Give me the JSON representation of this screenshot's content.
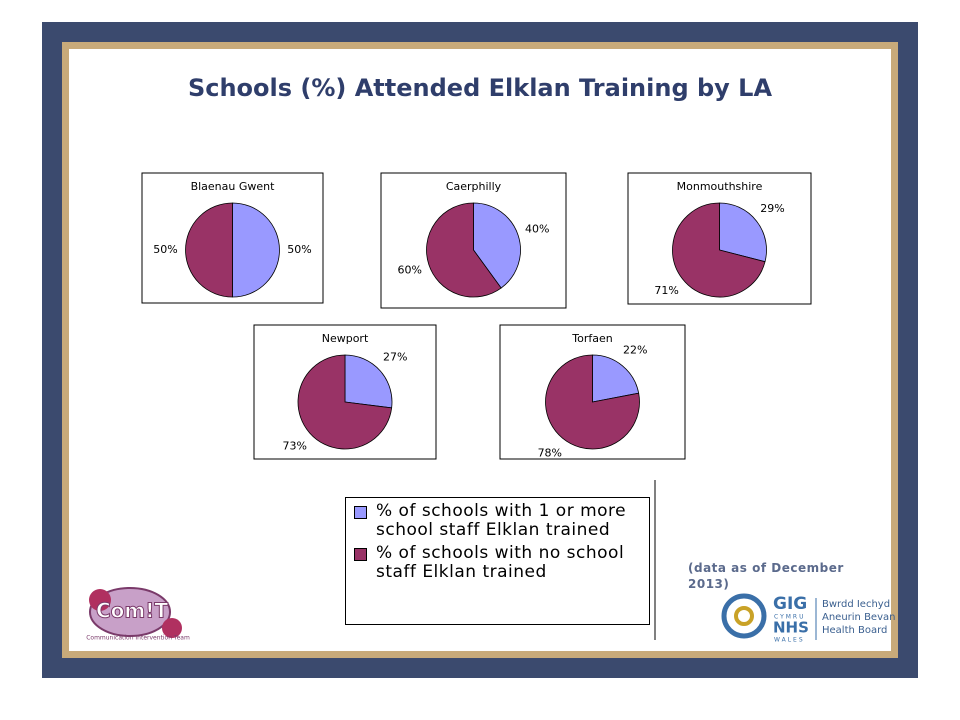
{
  "title": "Schools (%) Attended Elklan Training by LA",
  "legend": {
    "entries": [
      {
        "name": "% of schools with 1 or more school staff Elklan trained",
        "color": "#9999ff"
      },
      {
        "name": "% of schools with no school staff Elklan trained",
        "color": "#993366"
      }
    ]
  },
  "chart_data": [
    {
      "type": "pie",
      "title": "Blaenau Gwent",
      "values": [
        50,
        50
      ],
      "value_labels": [
        "50%",
        "50%"
      ]
    },
    {
      "type": "pie",
      "title": "Caerphilly",
      "values": [
        40,
        60
      ],
      "value_labels": [
        "40%",
        "60%"
      ]
    },
    {
      "type": "pie",
      "title": "Monmouthshire",
      "values": [
        29,
        71
      ],
      "value_labels": [
        "29%",
        "71%"
      ]
    },
    {
      "type": "pie",
      "title": "Newport",
      "values": [
        27,
        73
      ],
      "value_labels": [
        "27%",
        "73%"
      ]
    },
    {
      "type": "pie",
      "title": "Torfaen",
      "values": [
        22,
        78
      ],
      "value_labels": [
        "22%",
        "78%"
      ]
    }
  ],
  "note": "(data as of December 2013)",
  "logos": {
    "left": {
      "main": "Com!T",
      "sub": "Communication Intervention Team"
    },
    "right": {
      "gig": "GIG",
      "cymru": "CYMRU",
      "nhs": "NHS",
      "wales": "WALES",
      "board": "Bwrdd Iechyd Aneurin Bevan Health Board"
    }
  }
}
